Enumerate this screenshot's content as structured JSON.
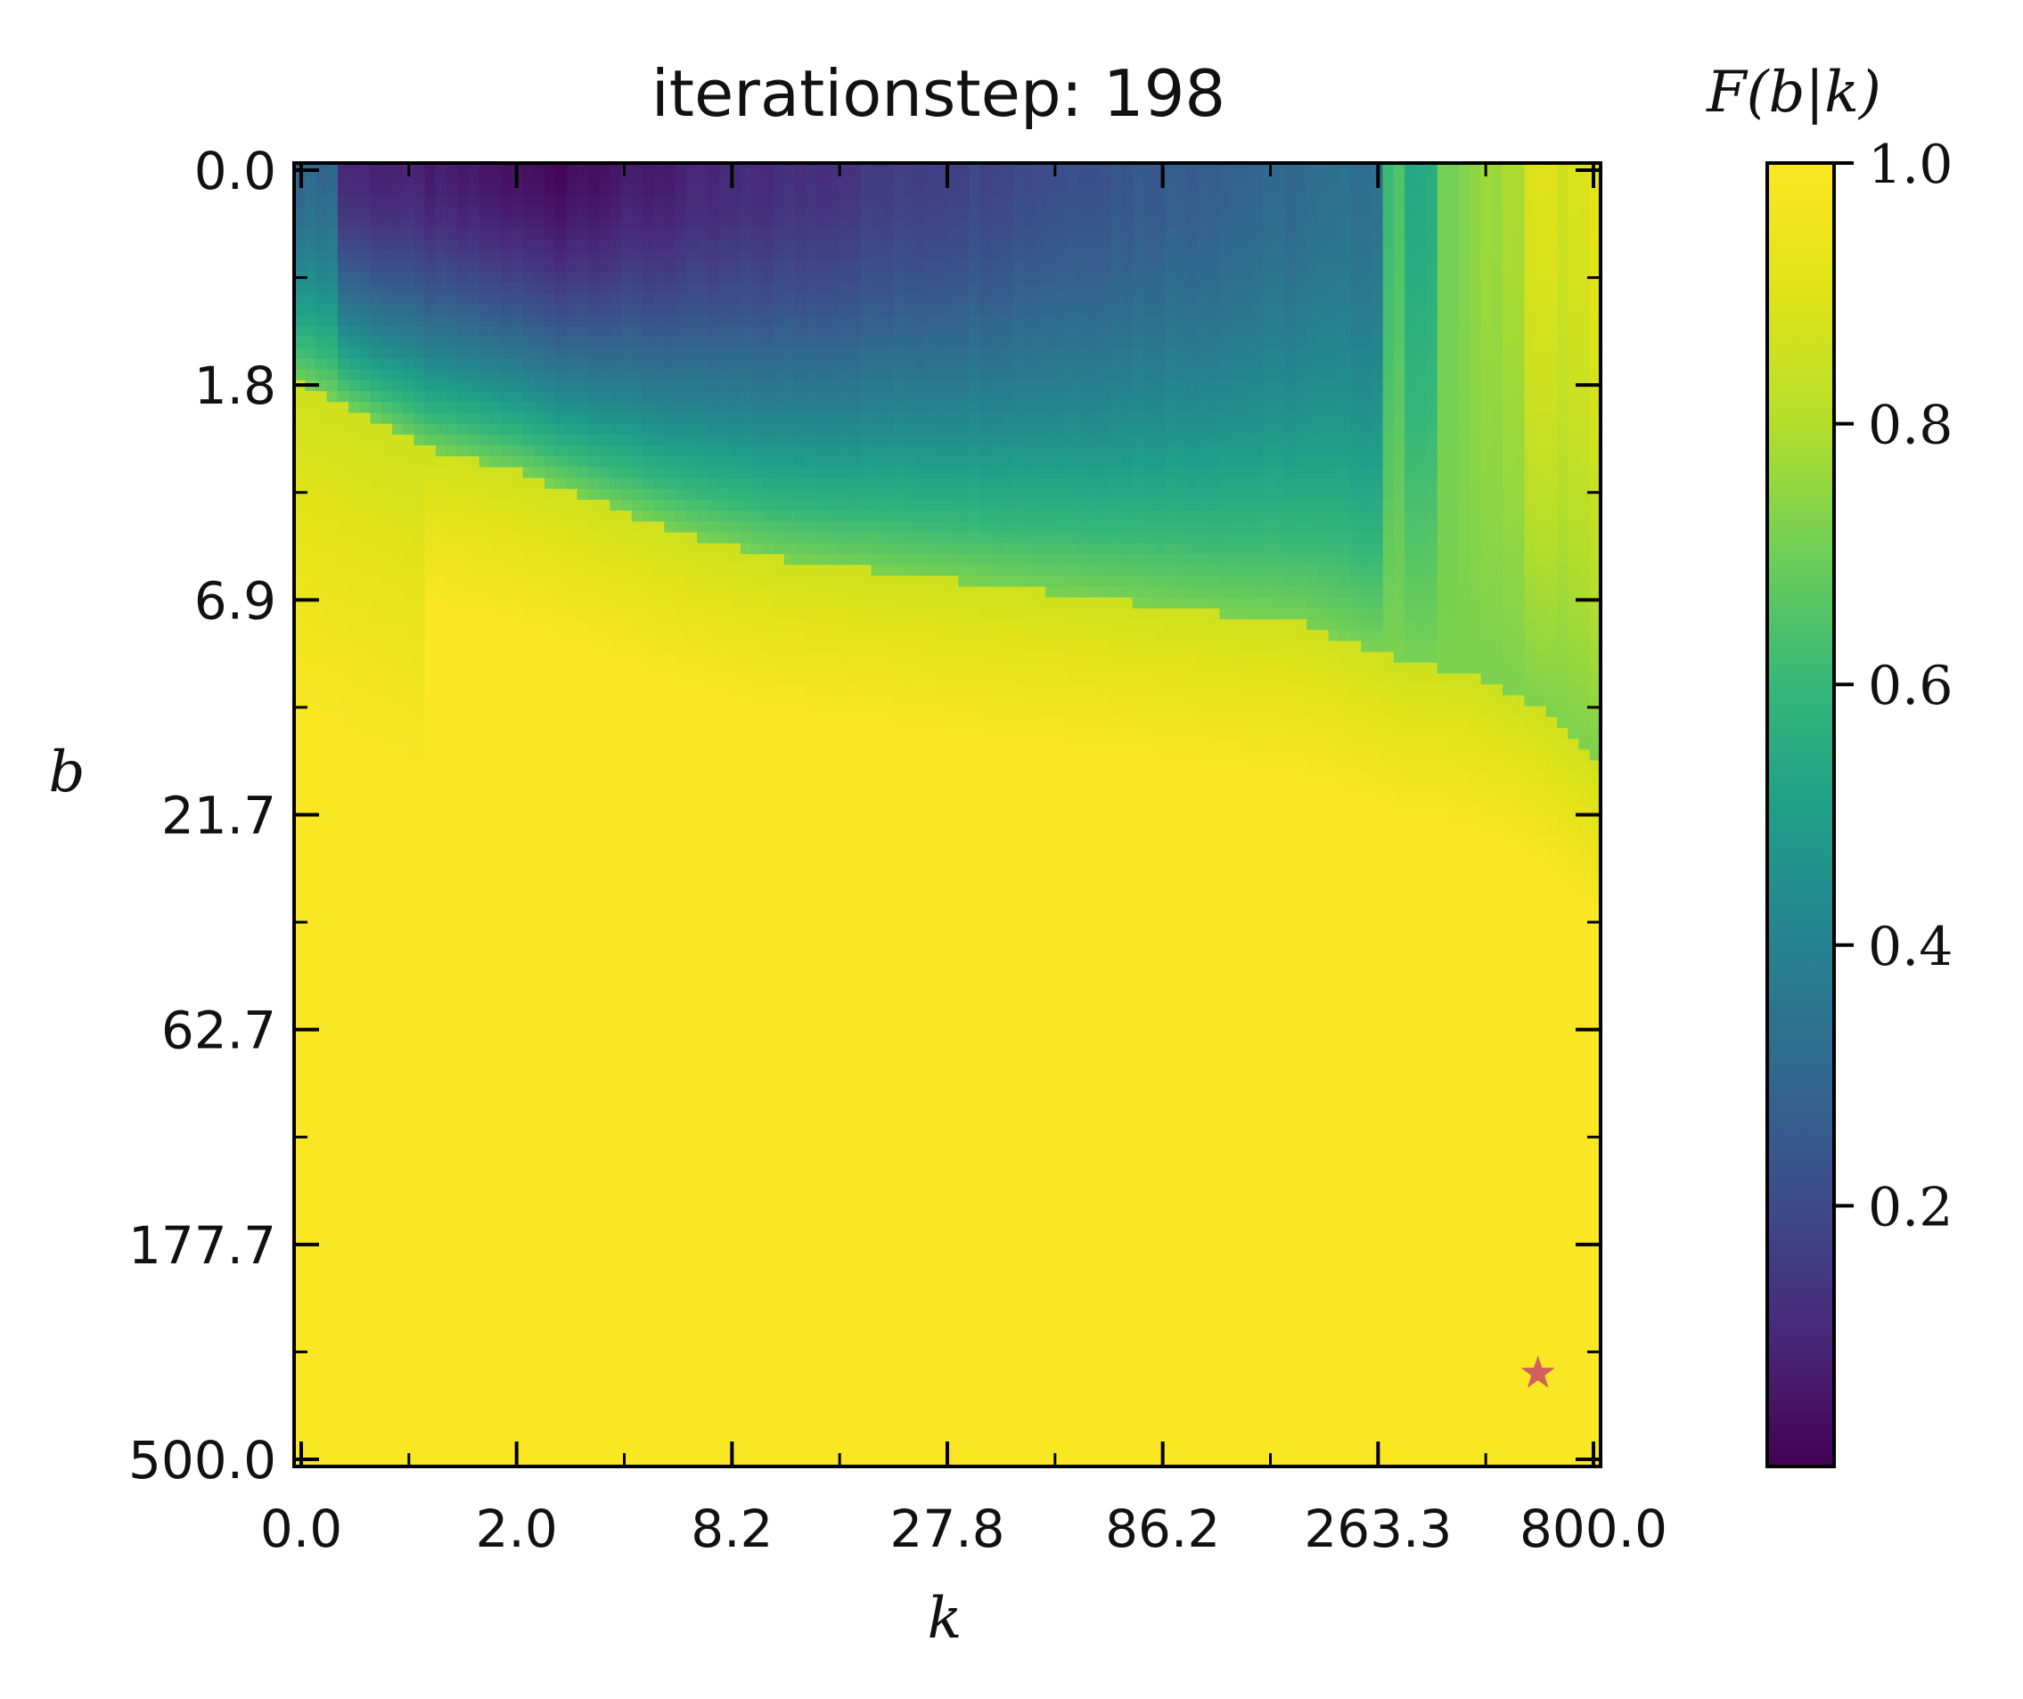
{
  "chart_data": {
    "type": "heatmap",
    "title": "iterationstep:  198",
    "xlabel": "k",
    "ylabel": "b",
    "colorbar_label": "F(b|k)",
    "colormap": "viridis",
    "x_scale": "log",
    "y_scale": "log",
    "y_inverted": true,
    "xlim": [
      0.0,
      800.0
    ],
    "ylim": [
      0.0,
      500.0
    ],
    "x_tick_labels": [
      "0.0",
      "2.0",
      "8.2",
      "27.8",
      "86.2",
      "263.3",
      "800.0"
    ],
    "y_tick_labels": [
      "0.0",
      "1.8",
      "6.9",
      "21.7",
      "62.7",
      "177.7",
      "500.0"
    ],
    "colorbar_range": [
      0.0,
      1.0
    ],
    "colorbar_ticks": [
      "0.2",
      "0.4",
      "0.6",
      "0.8",
      "1.0"
    ],
    "grid": false,
    "boundary_curve": {
      "description_axis": "b-index where F turns high, per k-index (0-120 grid, log-spaced axes)",
      "k_index": [
        0,
        4,
        8,
        12,
        16,
        20,
        28,
        36,
        44,
        52,
        60,
        68,
        76,
        84,
        92,
        100,
        102,
        104,
        108,
        114,
        120
      ],
      "b_index": [
        20,
        22,
        24,
        26,
        27,
        28,
        31,
        34,
        36,
        37,
        38,
        39,
        40,
        41,
        42,
        45,
        46,
        46,
        47,
        50,
        55
      ]
    },
    "marker": {
      "shape": "star",
      "k": 600,
      "b": 330,
      "color": "#d1605e"
    }
  }
}
